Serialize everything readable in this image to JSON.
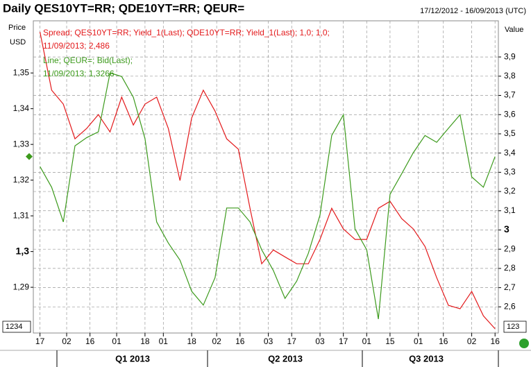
{
  "chart_data": {
    "type": "line",
    "title": "Daily QES10YT=RR; QDE10YT=RR; QEUR=",
    "date_range": "17/12/2012 - 16/09/2013 (UTC)",
    "y_label": [
      "Price",
      "USD"
    ],
    "y2_label": "Value",
    "left_marker_label": "1234",
    "right_marker_label": "123",
    "quarters": [
      "Q1 2013",
      "Q2 2013",
      "Q3 2013"
    ],
    "x": [
      "2012-12-17",
      "2012-12-24",
      "2012-12-31",
      "2013-01-07",
      "2013-01-14",
      "2013-01-21",
      "2013-01-28",
      "2013-02-04",
      "2013-02-11",
      "2013-02-18",
      "2013-02-25",
      "2013-03-04",
      "2013-03-11",
      "2013-03-18",
      "2013-03-25",
      "2013-04-01",
      "2013-04-08",
      "2013-04-15",
      "2013-04-22",
      "2013-04-29",
      "2013-05-06",
      "2013-05-13",
      "2013-05-20",
      "2013-05-27",
      "2013-06-03",
      "2013-06-10",
      "2013-06-17",
      "2013-06-24",
      "2013-07-01",
      "2013-07-08",
      "2013-07-15",
      "2013-07-22",
      "2013-07-29",
      "2013-08-05",
      "2013-08-12",
      "2013-08-19",
      "2013-08-26",
      "2013-09-02",
      "2013-09-09",
      "2013-09-16"
    ],
    "xlim": [
      "2012-12-13",
      "2013-09-18"
    ],
    "xticks": [
      {
        "value": "2012-12-17",
        "label": "17"
      },
      {
        "value": "2013-01-02",
        "label": "02"
      },
      {
        "value": "2013-01-16",
        "label": "16"
      },
      {
        "value": "2013-02-01",
        "label": "01"
      },
      {
        "value": "2013-02-18",
        "label": "18"
      },
      {
        "value": "2013-03-01",
        "label": "01"
      },
      {
        "value": "2013-03-18",
        "label": "18"
      },
      {
        "value": "2013-04-02",
        "label": "02"
      },
      {
        "value": "2013-04-16",
        "label": "16"
      },
      {
        "value": "2013-05-03",
        "label": "03"
      },
      {
        "value": "2013-05-17",
        "label": "17"
      },
      {
        "value": "2013-06-03",
        "label": "03"
      },
      {
        "value": "2013-06-17",
        "label": "17"
      },
      {
        "value": "2013-07-01",
        "label": "01"
      },
      {
        "value": "2013-07-15",
        "label": "15"
      },
      {
        "value": "2013-08-01",
        "label": "01"
      },
      {
        "value": "2013-08-16",
        "label": "16"
      },
      {
        "value": "2013-09-02",
        "label": "02"
      },
      {
        "value": "2013-09-16",
        "label": "16"
      }
    ],
    "ylim": [
      1.2772,
      1.3646
    ],
    "yticks": [
      {
        "value": 1.29,
        "label": "1,29"
      },
      {
        "value": 1.3,
        "label": "1,3"
      },
      {
        "value": 1.31,
        "label": "1,31"
      },
      {
        "value": 1.32,
        "label": "1,32"
      },
      {
        "value": 1.33,
        "label": "1,33"
      },
      {
        "value": 1.34,
        "label": "1,34"
      },
      {
        "value": 1.35,
        "label": "1,35"
      }
    ],
    "y2lim": [
      2.464,
      4.088
    ],
    "y2ticks": [
      {
        "value": 2.6,
        "label": "2,6"
      },
      {
        "value": 2.7,
        "label": "2,7"
      },
      {
        "value": 2.8,
        "label": "2,8"
      },
      {
        "value": 2.9,
        "label": "2,9"
      },
      3,
      {
        "value": 3.1,
        "label": "3,1"
      },
      {
        "value": 3.2,
        "label": "3,2"
      },
      {
        "value": 3.3,
        "label": "3,3"
      },
      {
        "value": 3.4,
        "label": "3,4"
      },
      {
        "value": 3.5,
        "label": "3,5"
      },
      {
        "value": 3.6,
        "label": "3,6"
      },
      {
        "value": 3.7,
        "label": "3,7"
      },
      {
        "value": 3.8,
        "label": "3,8"
      },
      {
        "value": 3.9,
        "label": "3,9"
      }
    ],
    "grid": true,
    "series": [
      {
        "name": "Spread; QES10YT=RR; Yield_1(Last); QDE10YT=RR; Yield_1(Last);  1,0; 1,0;",
        "detail": "11/09/2013; 2,486",
        "color": "#e3191b",
        "axis": "y2",
        "values": [
          4.03,
          3.727,
          3.655,
          3.474,
          3.528,
          3.6,
          3.51,
          3.691,
          3.546,
          3.655,
          3.691,
          3.528,
          3.257,
          3.582,
          3.727,
          3.618,
          3.474,
          3.42,
          3.113,
          2.824,
          2.896,
          2.86,
          2.824,
          2.824,
          2.951,
          3.113,
          3.005,
          2.951,
          2.951,
          3.113,
          3.149,
          3.059,
          3.005,
          2.914,
          2.752,
          2.608,
          2.59,
          2.68,
          2.553,
          2.486
        ]
      },
      {
        "name": "Line; QEUR=; Bid(Last);",
        "detail": "11/09/2013; 1,3266",
        "color": "#3c9a1c",
        "axis": "y",
        "values": [
          1.3238,
          1.318,
          1.3083,
          1.3296,
          1.3319,
          1.3335,
          1.35,
          1.349,
          1.3432,
          1.3316,
          1.3083,
          1.3024,
          1.2976,
          1.2889,
          1.285,
          1.2927,
          1.3122,
          1.3122,
          1.3083,
          1.3005,
          1.2947,
          1.2869,
          1.2917,
          1.2995,
          1.3102,
          1.3325,
          1.3383,
          1.3063,
          1.3005,
          1.2811,
          1.316,
          1.3218,
          1.3277,
          1.3325,
          1.3306,
          1.3345,
          1.3383,
          1.3209,
          1.318,
          1.3266
        ]
      }
    ]
  }
}
